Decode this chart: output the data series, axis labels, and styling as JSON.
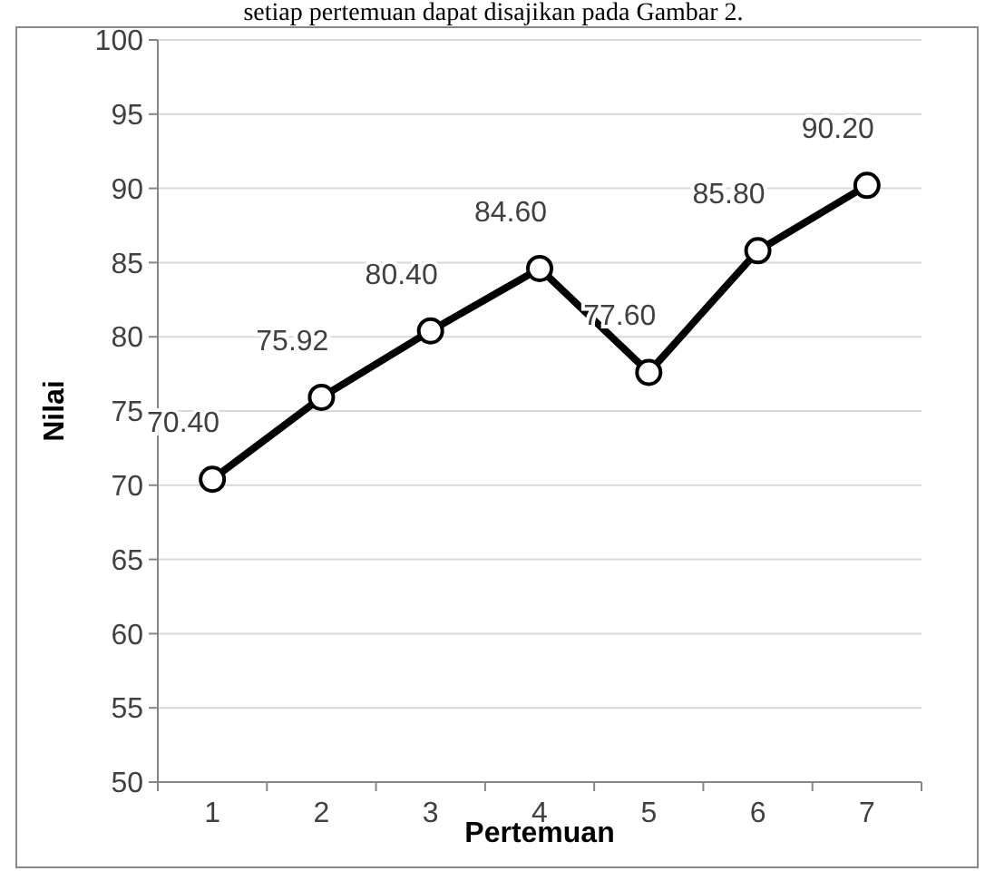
{
  "chart_data": {
    "type": "line",
    "xlabel": "Pertemuan",
    "ylabel": "Nilai",
    "annotations": [
      "setiap pertemuan dapat disajikan pada Gambar 2."
    ],
    "categories": [
      "1",
      "2",
      "3",
      "4",
      "5",
      "6",
      "7"
    ],
    "series": [
      {
        "color": "#000000",
        "values": [
          70.4,
          75.92,
          80.4,
          84.6,
          77.6,
          85.8,
          90.2
        ],
        "value_labels": [
          "70.40",
          "75.92",
          "80.40",
          "84.60",
          "77.60",
          "85.80",
          "90.20"
        ]
      }
    ],
    "ylim": [
      50,
      100
    ],
    "yticks": [
      50,
      55,
      60,
      65,
      70,
      75,
      80,
      85,
      90,
      95,
      100
    ],
    "grid": "y",
    "marker": "circle",
    "line_style": "solid"
  }
}
